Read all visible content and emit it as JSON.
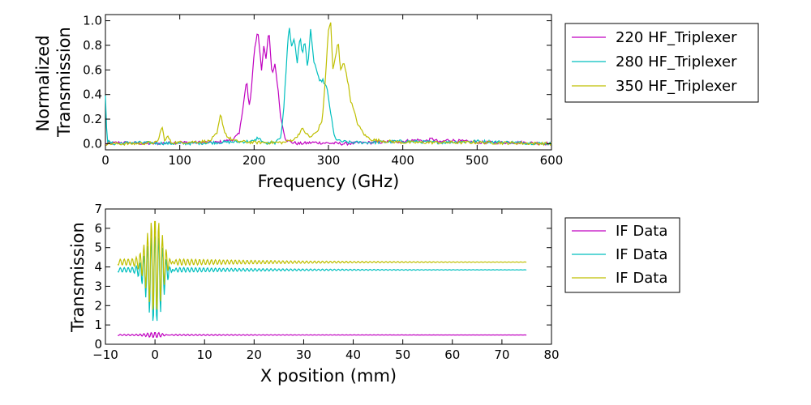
{
  "colors": {
    "magenta": "#c000c0",
    "cyan": "#00bfbf",
    "olive": "#bfbf00"
  },
  "chart_data": [
    {
      "type": "line",
      "title": "",
      "xlabel": "Frequency (GHz)",
      "ylabel": [
        "Normalized",
        "Transmission"
      ],
      "xlim": [
        0,
        600
      ],
      "ylim": [
        -0.05,
        1.05
      ],
      "xticks": [
        0,
        100,
        200,
        300,
        400,
        500,
        600
      ],
      "yticks": [
        0.0,
        0.2,
        0.4,
        0.6,
        0.8,
        1.0
      ],
      "xtick_labels": [
        "0",
        "100",
        "200",
        "300",
        "400",
        "500",
        "600"
      ],
      "ytick_labels": [
        "0.0",
        "0.2",
        "0.4",
        "0.6",
        "0.8",
        "1.0"
      ],
      "legend_position": "outside-right",
      "grid": false,
      "series": [
        {
          "name": "220 HF_Triplexer",
          "color": "#c000c0",
          "x": [
            0,
            20,
            60,
            100,
            150,
            170,
            180,
            185,
            190,
            193,
            196,
            200,
            205,
            210,
            213,
            216,
            220,
            224,
            228,
            232,
            236,
            240,
            242,
            246,
            252,
            260,
            280,
            320,
            360,
            400,
            420,
            430,
            440,
            450,
            460,
            500,
            560,
            600
          ],
          "y": [
            0.0,
            0.01,
            0.0,
            0.01,
            0.01,
            0.03,
            0.08,
            0.3,
            0.52,
            0.3,
            0.4,
            0.75,
            0.92,
            0.6,
            0.8,
            0.7,
            0.92,
            0.55,
            0.65,
            0.45,
            0.2,
            0.1,
            0.04,
            0.02,
            0.01,
            0.0,
            0.01,
            0.0,
            0.01,
            0.02,
            0.03,
            0.02,
            0.04,
            0.01,
            0.03,
            0.01,
            0.01,
            0.0
          ]
        },
        {
          "name": "280 HF_Triplexer",
          "color": "#00bfbf",
          "x": [
            0,
            1,
            3,
            10,
            40,
            100,
            150,
            200,
            205,
            215,
            230,
            236,
            240,
            243,
            247,
            250,
            254,
            258,
            262,
            265,
            268,
            272,
            276,
            280,
            284,
            288,
            292,
            298,
            303,
            308,
            315,
            330,
            360,
            400,
            450,
            500,
            550,
            600
          ],
          "y": [
            0.4,
            0.18,
            0.02,
            0.0,
            0.01,
            0.0,
            0.01,
            0.02,
            0.05,
            0.0,
            0.01,
            0.06,
            0.3,
            0.6,
            0.98,
            0.78,
            0.86,
            0.66,
            0.88,
            0.72,
            0.84,
            0.62,
            0.92,
            0.68,
            0.6,
            0.5,
            0.52,
            0.45,
            0.25,
            0.05,
            0.02,
            0.01,
            0.01,
            0.02,
            0.01,
            0.02,
            0.01,
            0.0
          ]
        },
        {
          "name": "350 HF_Triplexer",
          "color": "#bfbf00",
          "x": [
            0,
            40,
            70,
            76,
            80,
            84,
            88,
            100,
            140,
            150,
            155,
            160,
            165,
            175,
            200,
            240,
            255,
            265,
            275,
            285,
            292,
            296,
            300,
            303,
            306,
            310,
            313,
            316,
            320,
            324,
            330,
            340,
            350,
            360,
            380,
            400,
            450,
            500,
            600
          ],
          "y": [
            0.0,
            0.0,
            0.01,
            0.14,
            0.02,
            0.06,
            0.01,
            0.01,
            0.02,
            0.08,
            0.24,
            0.1,
            0.05,
            0.02,
            0.01,
            0.01,
            0.04,
            0.12,
            0.05,
            0.1,
            0.2,
            0.55,
            0.92,
            0.99,
            0.6,
            0.72,
            0.84,
            0.6,
            0.66,
            0.58,
            0.35,
            0.15,
            0.06,
            0.03,
            0.02,
            0.01,
            0.01,
            0.01,
            0.0
          ]
        }
      ]
    },
    {
      "type": "line",
      "title": "",
      "xlabel": "X position (mm)",
      "ylabel": "Transmission",
      "xlim": [
        -10,
        80
      ],
      "ylim": [
        0,
        7
      ],
      "xticks": [
        -10,
        0,
        10,
        20,
        30,
        40,
        50,
        60,
        70,
        80
      ],
      "yticks": [
        0,
        1,
        2,
        3,
        4,
        5,
        6,
        7
      ],
      "xtick_labels": [
        "−10",
        "0",
        "10",
        "20",
        "30",
        "40",
        "50",
        "60",
        "70",
        "80"
      ],
      "ytick_labels": [
        "0",
        "1",
        "2",
        "3",
        "4",
        "5",
        "6",
        "7"
      ],
      "legend_position": "outside-right",
      "grid": false,
      "series": [
        {
          "name": "IF Data",
          "color": "#c000c0",
          "baseline": 0.48,
          "center_peak": 0.62,
          "osc_amplitude": 0.04,
          "x_range": [
            -7.5,
            75
          ]
        },
        {
          "name": "IF Data",
          "color": "#00bfbf",
          "baseline": 3.85,
          "center_peak": 5.8,
          "center_trough": 0.9,
          "osc_amplitude": 0.15,
          "x_range": [
            -7.5,
            75
          ]
        },
        {
          "name": "IF Data",
          "color": "#bfbf00",
          "baseline": 4.25,
          "center_peak": 6.65,
          "center_trough": 1.5,
          "osc_amplitude": 0.2,
          "x_range": [
            -7.5,
            75
          ]
        }
      ]
    }
  ]
}
